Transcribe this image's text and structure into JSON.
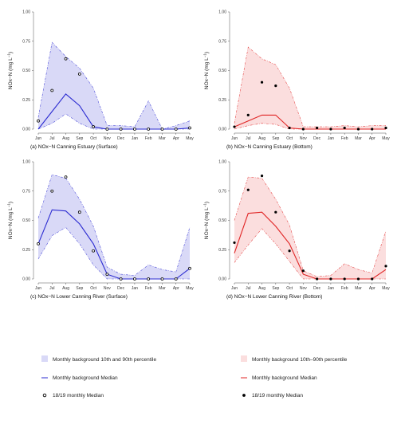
{
  "months": [
    "Jun",
    "Jul",
    "Aug",
    "Sep",
    "Oct",
    "Nov",
    "Dec",
    "Jan",
    "Feb",
    "Mar",
    "Apr",
    "May"
  ],
  "y_ticks": [
    "0.00",
    "0.25",
    "0.50",
    "0.75",
    "1.00"
  ],
  "colors": {
    "blue_fill": "#d9d9f7",
    "blue_line": "#2b2bd1",
    "red_fill": "#fbdede",
    "red_line": "#e02424"
  },
  "chart_data": [
    {
      "type": "line",
      "caption": "(a) NOx−N Canning Estuary (Surface)",
      "ylabel": "NOx−N (mg L",
      "ylabel_sup": "−1",
      "ylabel_close": ")",
      "ylim": [
        0,
        1
      ],
      "theme": "blue",
      "marker": "open",
      "series": [
        {
          "name": "Monthly background 10th and 90th percentile",
          "p10": [
            0.0,
            0.05,
            0.13,
            0.05,
            0.0,
            0.0,
            0.0,
            0.0,
            0.0,
            0.0,
            0.0,
            0.0
          ],
          "p90": [
            0.1,
            0.74,
            0.62,
            0.52,
            0.35,
            0.03,
            0.03,
            0.02,
            0.24,
            0.0,
            0.03,
            0.07
          ]
        },
        {
          "name": "Monthly background Median",
          "values": [
            0.0,
            0.15,
            0.3,
            0.2,
            0.02,
            0.0,
            0.0,
            0.0,
            0.0,
            0.0,
            0.0,
            0.01
          ]
        },
        {
          "name": "18/19 monthly Median",
          "values": [
            0.07,
            0.33,
            0.6,
            0.47,
            0.02,
            0.0,
            0.0,
            0.0,
            0.0,
            0.0,
            0.0,
            0.01
          ]
        }
      ]
    },
    {
      "type": "line",
      "caption": "(b) NOx−N Canning Estuary (Bottom)",
      "ylabel": "NOx−N (mg L",
      "ylabel_sup": "−1",
      "ylabel_close": ")",
      "ylim": [
        0,
        1
      ],
      "theme": "red",
      "marker": "filled",
      "series": [
        {
          "name": "Monthly background 10th–90th percentile",
          "p10": [
            0.0,
            0.03,
            0.05,
            0.04,
            0.0,
            0.0,
            0.0,
            0.0,
            0.0,
            0.0,
            0.0,
            0.0
          ],
          "p90": [
            0.05,
            0.7,
            0.6,
            0.55,
            0.35,
            0.02,
            0.02,
            0.02,
            0.03,
            0.02,
            0.03,
            0.03
          ]
        },
        {
          "name": "Monthly background Median",
          "values": [
            0.02,
            0.07,
            0.12,
            0.12,
            0.01,
            0.0,
            0.0,
            0.0,
            0.0,
            0.0,
            0.0,
            0.0
          ]
        },
        {
          "name": "18/19 monthly Median",
          "values": [
            0.02,
            0.12,
            0.4,
            0.37,
            0.01,
            0.0,
            0.01,
            0.0,
            0.01,
            0.0,
            0.0,
            0.01
          ]
        }
      ]
    },
    {
      "type": "line",
      "caption": "(c) NOx−N Lower Canning River (Surface)",
      "ylabel": "NOx−N (mg L",
      "ylabel_sup": "−1",
      "ylabel_close": ")",
      "ylim": [
        0,
        1
      ],
      "theme": "blue",
      "marker": "open",
      "series": [
        {
          "name": "Monthly background 10th and 90th percentile",
          "p10": [
            0.17,
            0.37,
            0.44,
            0.3,
            0.12,
            0.0,
            0.0,
            0.0,
            0.0,
            0.0,
            0.0,
            0.0
          ],
          "p90": [
            0.52,
            0.89,
            0.86,
            0.68,
            0.45,
            0.1,
            0.04,
            0.03,
            0.12,
            0.08,
            0.06,
            0.44
          ]
        },
        {
          "name": "Monthly background Median",
          "values": [
            0.3,
            0.59,
            0.58,
            0.47,
            0.3,
            0.04,
            0.0,
            0.0,
            0.0,
            0.0,
            0.0,
            0.09
          ]
        },
        {
          "name": "18/19 monthly Median",
          "values": [
            0.3,
            0.75,
            0.87,
            0.57,
            0.24,
            0.04,
            0.0,
            0.0,
            0.0,
            0.0,
            0.0,
            0.09
          ]
        }
      ]
    },
    {
      "type": "line",
      "caption": "(d) NOx−N Lower Canning River (Bottom)",
      "ylabel": "NOx−N (mg L",
      "ylabel_sup": "−1",
      "ylabel_close": ")",
      "ylim": [
        0,
        1
      ],
      "theme": "red",
      "marker": "filled",
      "series": [
        {
          "name": "Monthly background 10th–90th percentile",
          "p10": [
            0.14,
            0.29,
            0.43,
            0.3,
            0.15,
            0.0,
            0.0,
            0.0,
            0.0,
            0.0,
            0.0,
            0.0
          ],
          "p90": [
            0.5,
            0.87,
            0.86,
            0.68,
            0.46,
            0.07,
            0.02,
            0.03,
            0.13,
            0.08,
            0.05,
            0.41
          ]
        },
        {
          "name": "Monthly background Median",
          "values": [
            0.22,
            0.56,
            0.57,
            0.45,
            0.3,
            0.04,
            0.0,
            0.0,
            0.0,
            0.0,
            0.0,
            0.08
          ]
        },
        {
          "name": "18/19 monthly Median",
          "values": [
            0.31,
            0.76,
            0.88,
            0.57,
            0.24,
            0.07,
            0.0,
            0.0,
            0.0,
            0.0,
            0.0,
            0.11
          ]
        }
      ]
    }
  ],
  "legend": {
    "blue": {
      "band": "Monthly background 10th and 90th percentile",
      "median": "Monthly background Median",
      "points": "18/19 monthly Median"
    },
    "red": {
      "band": "Monthly background 10th–90th percentile",
      "median": "Monthly background Median",
      "points": "18/19 monthly Median"
    }
  }
}
